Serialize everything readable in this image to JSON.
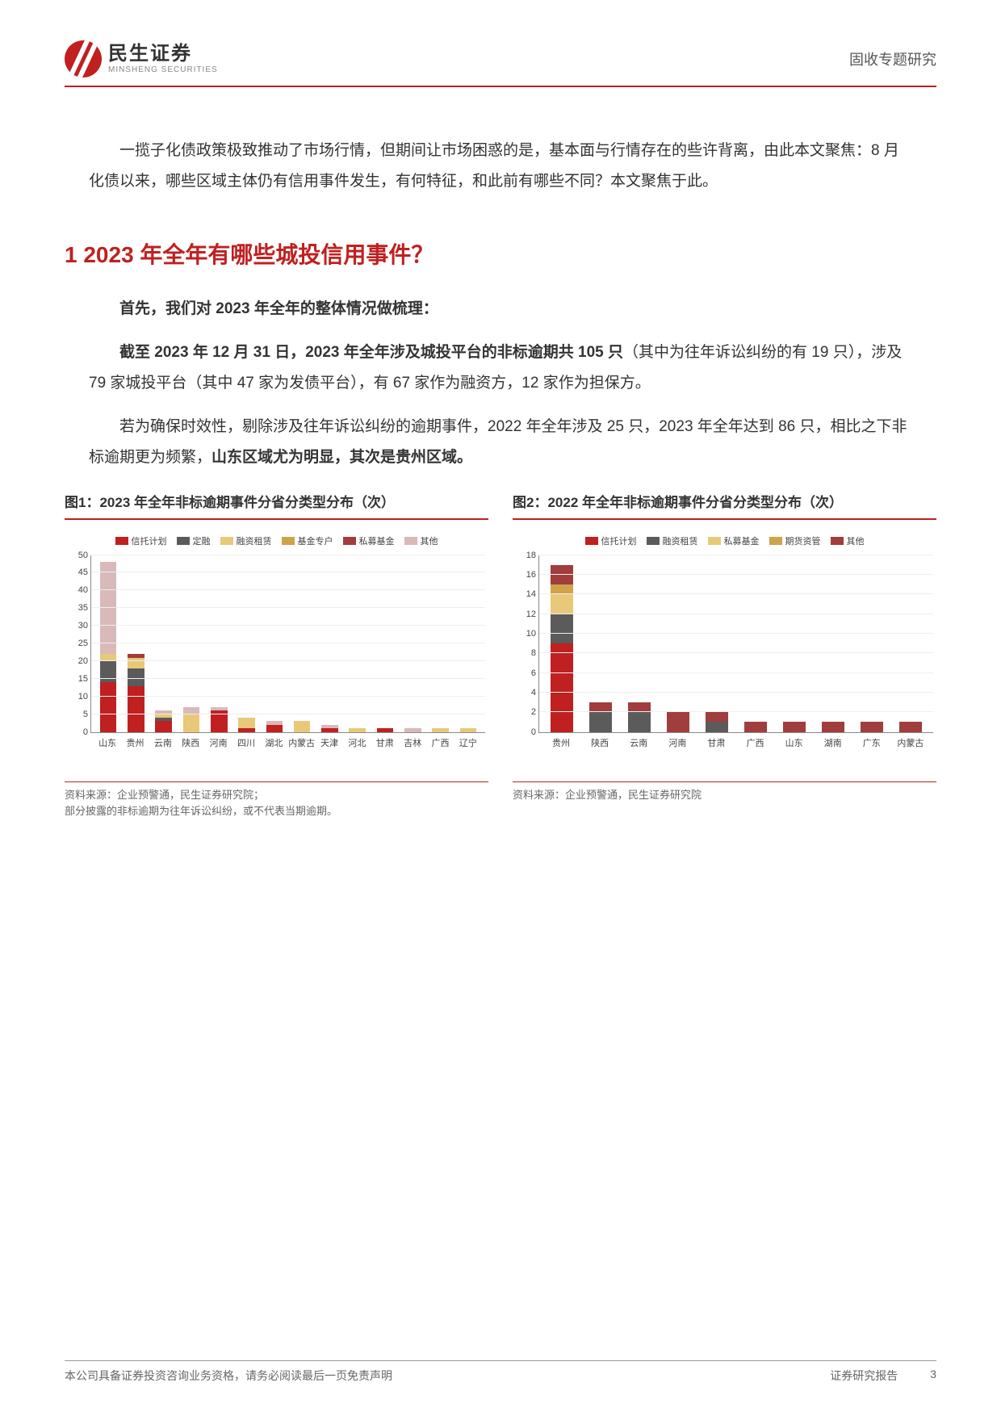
{
  "header": {
    "logo_cn": "民生证券",
    "logo_en": "MINSHENG SECURITIES",
    "right": "固收专题研究"
  },
  "intro": "一揽子化债政策极致推动了市场行情，但期间让市场困惑的是，基本面与行情存在的些许背离，由此本文聚焦：8 月化债以来，哪些区域主体仍有信用事件发生，有何特征，和此前有哪些不同？本文聚焦于此。",
  "h1": "1 2023 年全年有哪些城投信用事件？",
  "p1_bold": "首先，我们对 2023 年全年的整体情况做梳理：",
  "p2_bold": "截至 2023 年 12 月 31 日，2023 年全年涉及城投平台的非标逾期共 105 只",
  "p2_rest": "（其中为往年诉讼纠纷的有 19 只），涉及 79 家城投平台（其中 47 家为发债平台），有 67 家作为融资方，12 家作为担保方。",
  "p3_a": "若为确保时效性，剔除涉及往年诉讼纠纷的逾期事件，2022 年全年涉及 25 只，2023 年全年达到 86 只，相比之下非标逾期更为频繁，",
  "p3_b": "山东区域尤为明显，其次是贵州区域。",
  "chart1": {
    "type": "stacked-bar",
    "title": "图1：2023 年全年非标逾期事件分省分类型分布（次）",
    "legend": [
      "信托计划",
      "定融",
      "融资租赁",
      "基金专户",
      "私募基金",
      "其他"
    ],
    "colors": [
      "#c02020",
      "#5b5b5b",
      "#e8c97a",
      "#cfa34a",
      "#a13d3d",
      "#d9b9b9"
    ],
    "ylim": [
      0,
      50
    ],
    "ytick_step": 5,
    "categories": [
      "山东",
      "贵州",
      "云南",
      "陕西",
      "河南",
      "四川",
      "湖北",
      "内蒙古",
      "天津",
      "河北",
      "甘肃",
      "吉林",
      "广西",
      "辽宁"
    ],
    "series": [
      [
        14,
        13,
        3,
        0,
        6,
        1,
        2,
        0,
        1,
        0,
        1,
        0,
        0,
        0
      ],
      [
        6,
        5,
        1,
        0,
        0,
        0,
        0,
        0,
        0,
        0,
        0,
        0,
        0,
        0
      ],
      [
        2,
        3,
        1,
        5,
        0,
        3,
        0,
        3,
        0,
        1,
        0,
        0,
        1,
        1
      ],
      [
        0,
        0,
        0,
        0,
        0,
        0,
        0,
        0,
        0,
        0,
        0,
        0,
        0,
        0
      ],
      [
        0,
        1,
        0,
        0,
        0,
        0,
        0,
        0,
        0,
        0,
        0,
        0,
        0,
        0
      ],
      [
        26,
        0,
        1,
        2,
        1,
        0,
        1,
        0,
        1,
        0,
        0,
        1,
        0,
        0
      ]
    ],
    "source1": "资料来源：企业预警通，民生证券研究院；",
    "source2": "部分披露的非标逾期为往年诉讼纠纷，或不代表当期逾期。"
  },
  "chart2": {
    "type": "stacked-bar",
    "title": "图2：2022 年全年非标逾期事件分省分类型分布（次）",
    "legend": [
      "信托计划",
      "融资租赁",
      "私募基金",
      "期货资管",
      "其他"
    ],
    "colors": [
      "#c02020",
      "#5b5b5b",
      "#e8c97a",
      "#cfa34a",
      "#a13d3d"
    ],
    "ylim": [
      0,
      18
    ],
    "ytick_step": 2,
    "categories": [
      "贵州",
      "陕西",
      "云南",
      "河南",
      "甘肃",
      "广西",
      "山东",
      "湖南",
      "广东",
      "内蒙古"
    ],
    "series": [
      [
        9,
        0,
        0,
        0,
        0,
        0,
        0,
        0,
        0,
        0
      ],
      [
        3,
        2,
        2,
        0,
        1,
        0,
        0,
        0,
        0,
        0
      ],
      [
        2,
        0,
        0,
        0,
        0,
        0,
        0,
        0,
        0,
        0
      ],
      [
        1,
        0,
        0,
        0,
        0,
        0,
        0,
        0,
        0,
        0
      ],
      [
        2,
        1,
        1,
        2,
        1,
        1,
        1,
        1,
        1,
        1
      ]
    ],
    "source1": "资料来源：企业预警通，民生证券研究院"
  },
  "footer": {
    "left": "本公司具备证券投资咨询业务资格，请务必阅读最后一页免责声明",
    "right1": "证券研究报告",
    "right2": "3"
  },
  "styling": {
    "accent": "#c02020",
    "text": "#333333",
    "muted": "#666666",
    "grid": "#eeeeee",
    "bg": "#ffffff",
    "body_fontsize": 19,
    "title_fontsize": 28,
    "chart_title_fontsize": 17,
    "tick_fontsize": 11
  }
}
